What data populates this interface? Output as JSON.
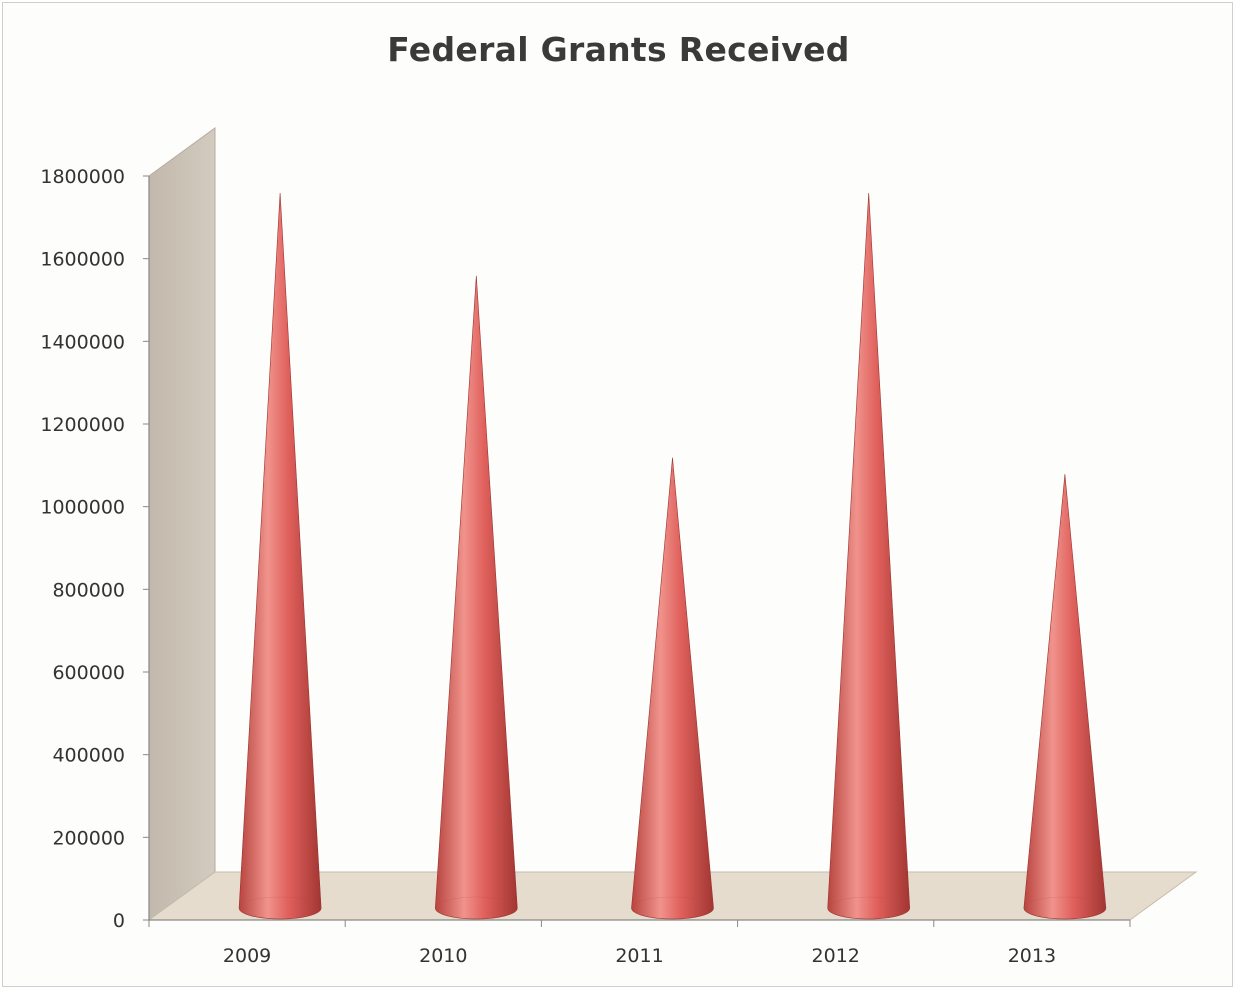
{
  "chart_data": {
    "type": "bar",
    "style": "3d-cone",
    "title": "Federal Grants Received",
    "xlabel": "",
    "ylabel": "",
    "categories": [
      "2009",
      "2010",
      "2011",
      "2012",
      "2013"
    ],
    "series": [
      {
        "values": [
          1720000,
          1520000,
          1080000,
          1720000,
          1040000
        ]
      }
    ],
    "ylim": [
      0,
      1800000
    ],
    "yticks": [
      "0",
      "200000",
      "400000",
      "600000",
      "800000",
      "1000000",
      "1200000",
      "1400000",
      "1600000",
      "1800000"
    ],
    "grid": false,
    "legend": "none",
    "colors": {
      "cone": "#e0605c",
      "cone_dark": "#a83a36",
      "cone_light": "#f2a09a",
      "wall": "#c9c0b4",
      "floor": "#e6dccd"
    }
  }
}
